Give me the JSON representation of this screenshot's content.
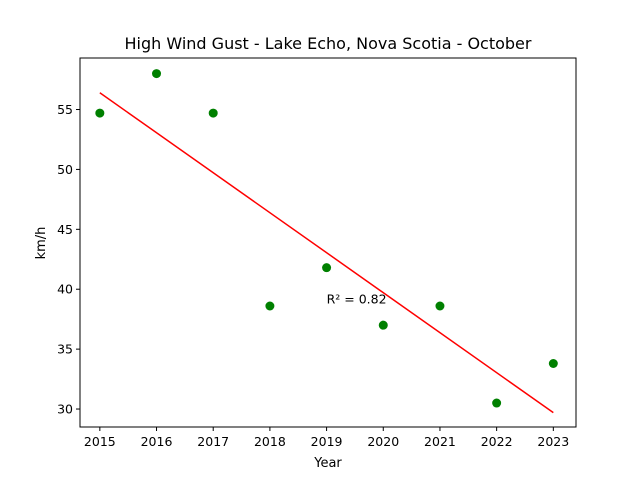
{
  "chart_data": {
    "type": "scatter",
    "title": "High Wind Gust - Lake Echo, Nova Scotia - October",
    "xlabel": "Year",
    "ylabel": "km/h",
    "xlim": [
      2014.65,
      2023.4
    ],
    "ylim": [
      28.5,
      59.3
    ],
    "x_ticks": [
      2015,
      2016,
      2017,
      2018,
      2019,
      2020,
      2021,
      2022,
      2023
    ],
    "y_ticks": [
      30,
      35,
      40,
      45,
      50,
      55
    ],
    "grid": false,
    "series": [
      {
        "color": "#008000",
        "marker": "circle",
        "x": [
          2015,
          2016,
          2017,
          2018,
          2019,
          2020,
          2021,
          2022,
          2023
        ],
        "y": [
          54.7,
          58.0,
          54.7,
          38.6,
          41.8,
          37.0,
          38.6,
          30.5,
          33.8
        ]
      }
    ],
    "trendline": {
      "color": "#ff0000",
      "x": [
        2015,
        2023
      ],
      "y": [
        56.4,
        29.7
      ]
    },
    "annotations": [
      {
        "text": "R² = 0.82",
        "x": 2019,
        "y": 38.8
      }
    ]
  }
}
